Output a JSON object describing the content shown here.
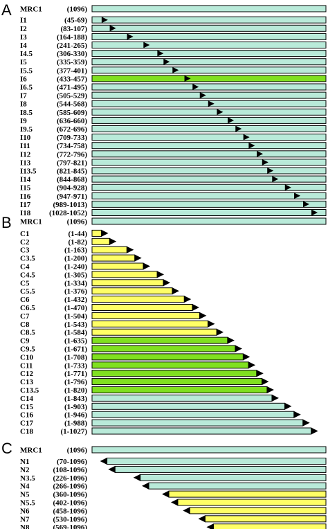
{
  "colors": {
    "teal": "#b9ead9",
    "yellow": "#ffff66",
    "green": "#80e020",
    "marker": "#000000",
    "outline": "#000000"
  },
  "protein_length": 1096,
  "panels": [
    {
      "letter": "A",
      "kind": "internal",
      "rows": [
        {
          "name": "MRC1",
          "range": "(1096)",
          "ref": true
        },
        {
          "name": "I1",
          "range": "(45-69)",
          "start": 45,
          "end": 69,
          "color": "teal"
        },
        {
          "name": "I2",
          "range": "(83-107)",
          "start": 83,
          "end": 107,
          "color": "teal"
        },
        {
          "name": "I3",
          "range": "(164-188)",
          "start": 164,
          "end": 188,
          "color": "teal"
        },
        {
          "name": "I4",
          "range": "(241-265)",
          "start": 241,
          "end": 265,
          "color": "teal"
        },
        {
          "name": "I4.5",
          "range": "(306-330)",
          "start": 306,
          "end": 330,
          "color": "teal"
        },
        {
          "name": "I5",
          "range": "(335-359)",
          "start": 335,
          "end": 359,
          "color": "teal"
        },
        {
          "name": "I5.5",
          "range": "(377-401)",
          "start": 377,
          "end": 401,
          "color": "teal"
        },
        {
          "name": "I6",
          "range": "(433-457)",
          "start": 433,
          "end": 457,
          "color": "green"
        },
        {
          "name": "I6.5",
          "range": "(471-495)",
          "start": 471,
          "end": 495,
          "color": "teal"
        },
        {
          "name": "I7",
          "range": "(505-529)",
          "start": 505,
          "end": 529,
          "color": "teal"
        },
        {
          "name": "I8",
          "range": "(544-568)",
          "start": 544,
          "end": 568,
          "color": "teal"
        },
        {
          "name": "I8.5",
          "range": "(585-609)",
          "start": 585,
          "end": 609,
          "color": "teal"
        },
        {
          "name": "I9",
          "range": "(636-660)",
          "start": 636,
          "end": 660,
          "color": "teal"
        },
        {
          "name": "I9.5",
          "range": "(672-696)",
          "start": 672,
          "end": 696,
          "color": "teal"
        },
        {
          "name": "I10",
          "range": "(709-733)",
          "start": 709,
          "end": 733,
          "color": "teal"
        },
        {
          "name": "I11",
          "range": "(734-758)",
          "start": 734,
          "end": 758,
          "color": "teal"
        },
        {
          "name": "I12",
          "range": "(772-796)",
          "start": 772,
          "end": 796,
          "color": "teal"
        },
        {
          "name": "I13",
          "range": "(797-821)",
          "start": 797,
          "end": 821,
          "color": "teal"
        },
        {
          "name": "I13.5",
          "range": "(821-845)",
          "start": 821,
          "end": 845,
          "color": "teal"
        },
        {
          "name": "I14",
          "range": "(844-868)",
          "start": 844,
          "end": 868,
          "color": "teal"
        },
        {
          "name": "I15",
          "range": "(904-928)",
          "start": 904,
          "end": 928,
          "color": "teal"
        },
        {
          "name": "I16",
          "range": "(947-971)",
          "start": 947,
          "end": 971,
          "color": "teal"
        },
        {
          "name": "I17",
          "range": "(989-1013)",
          "start": 989,
          "end": 1013,
          "color": "teal"
        },
        {
          "name": "I18",
          "range": "(1028-1052)",
          "start": 1028,
          "end": 1052,
          "color": "teal"
        }
      ]
    },
    {
      "letter": "B",
      "kind": "c_terminal",
      "rows": [
        {
          "name": "MRC1",
          "range": "(1096)",
          "ref": true
        },
        {
          "name": "C1",
          "range": "(1-44)",
          "end": 44,
          "color": "yellow"
        },
        {
          "name": "C2",
          "range": "(1-82)",
          "end": 82,
          "color": "yellow"
        },
        {
          "name": "C3",
          "range": "(1-163)",
          "end": 163,
          "color": "yellow"
        },
        {
          "name": "C3.5",
          "range": "(1-200)",
          "end": 200,
          "color": "yellow"
        },
        {
          "name": "C4",
          "range": "(1-240)",
          "end": 240,
          "color": "yellow"
        },
        {
          "name": "C4.5",
          "range": "(1-305)",
          "end": 305,
          "color": "yellow"
        },
        {
          "name": "C5",
          "range": "(1-334)",
          "end": 334,
          "color": "yellow"
        },
        {
          "name": "C5.5",
          "range": "(1-376)",
          "end": 376,
          "color": "yellow"
        },
        {
          "name": "C6",
          "range": "(1-432)",
          "end": 432,
          "color": "yellow"
        },
        {
          "name": "C6.5",
          "range": "(1-470)",
          "end": 470,
          "color": "yellow"
        },
        {
          "name": "C7",
          "range": "(1-504)",
          "end": 504,
          "color": "yellow"
        },
        {
          "name": "C8",
          "range": "(1-543)",
          "end": 543,
          "color": "yellow"
        },
        {
          "name": "C8.5",
          "range": "(1-584)",
          "end": 584,
          "color": "yellow"
        },
        {
          "name": "C9",
          "range": "(1-635)",
          "end": 635,
          "color": "green"
        },
        {
          "name": "C9.5",
          "range": "(1-671)",
          "end": 671,
          "color": "green"
        },
        {
          "name": "C10",
          "range": "(1-708)",
          "end": 708,
          "color": "green"
        },
        {
          "name": "C11",
          "range": "(1-733)",
          "end": 733,
          "color": "green"
        },
        {
          "name": "C12",
          "range": "(1-771)",
          "end": 771,
          "color": "green"
        },
        {
          "name": "C13",
          "range": "(1-796)",
          "end": 796,
          "color": "green"
        },
        {
          "name": "C13.5",
          "range": "(1-820)",
          "end": 820,
          "color": "green"
        },
        {
          "name": "C14",
          "range": "(1-843)",
          "end": 843,
          "color": "teal"
        },
        {
          "name": "C15",
          "range": "(1-903)",
          "end": 903,
          "color": "teal"
        },
        {
          "name": "C16",
          "range": "(1-946)",
          "end": 946,
          "color": "teal"
        },
        {
          "name": "C17",
          "range": "(1-988)",
          "end": 988,
          "color": "teal"
        },
        {
          "name": "C18",
          "range": "(1-1027)",
          "end": 1027,
          "color": "teal"
        }
      ]
    },
    {
      "letter": "C",
      "kind": "n_terminal",
      "rows": [
        {
          "name": "MRC1",
          "range": "(1096)",
          "ref": true
        },
        {
          "name": "N1",
          "range": "(70-1096)",
          "start": 70,
          "color": "teal"
        },
        {
          "name": "N2",
          "range": "(108-1096)",
          "start": 108,
          "color": "teal"
        },
        {
          "name": "N3.5",
          "range": "(226-1096)",
          "start": 226,
          "color": "teal"
        },
        {
          "name": "N4",
          "range": "(266-1096)",
          "start": 266,
          "color": "teal"
        },
        {
          "name": "N5",
          "range": "(360-1096)",
          "start": 360,
          "color": "yellow"
        },
        {
          "name": "N5.5",
          "range": "(402-1096)",
          "start": 402,
          "color": "yellow"
        },
        {
          "name": "N6",
          "range": "(458-1096)",
          "start": 458,
          "color": "yellow"
        },
        {
          "name": "N7",
          "range": "(530-1096)",
          "start": 530,
          "color": "yellow"
        },
        {
          "name": "N8",
          "range": "(569-1096)",
          "start": 569,
          "color": "yellow"
        }
      ]
    }
  ]
}
